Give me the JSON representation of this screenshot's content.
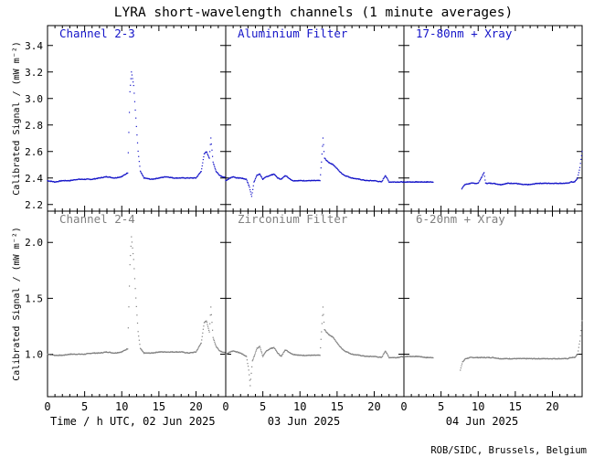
{
  "chart_data": {
    "type": "scatter",
    "title": "LYRA short-wavelength channels (1 minute averages)",
    "ylabel": "Calibrated Signal / (mW m⁻²)",
    "credit": "ROB/SIDC, Brussels, Belgium",
    "x_tick_labels": [
      "0",
      "5",
      "10",
      "15",
      "20"
    ],
    "x_ticks": [
      0,
      5,
      10,
      15,
      20
    ],
    "x_range": [
      0,
      24
    ],
    "day_labels": [
      "Time / h UTC, 02 Jun 2025",
      "03 Jun 2025",
      "04 Jun 2025"
    ],
    "rows": [
      {
        "ylim": [
          2.15,
          3.55
        ],
        "y_ticks": [
          2.2,
          2.4,
          2.6,
          2.8,
          3.0,
          3.2,
          3.4
        ],
        "y_tick_labels": [
          "2.2",
          "2.4",
          "2.6",
          "2.8",
          "3.0",
          "3.2",
          "3.4"
        ],
        "color": "#1414c8",
        "panels": [
          {
            "label": "Channel 2-3",
            "points": [
              [
                0,
                2.38
              ],
              [
                1,
                2.37
              ],
              [
                2,
                2.38
              ],
              [
                3,
                2.38
              ],
              [
                4,
                2.39
              ],
              [
                5,
                2.39
              ],
              [
                6,
                2.39
              ],
              [
                7,
                2.4
              ],
              [
                8,
                2.41
              ],
              [
                9,
                2.4
              ],
              [
                10,
                2.41
              ],
              [
                10.8,
                2.44
              ],
              [
                11.1,
                3.05
              ],
              [
                11.3,
                3.2
              ],
              [
                11.6,
                3.1
              ],
              [
                11.9,
                2.85
              ],
              [
                12.2,
                2.6
              ],
              [
                12.5,
                2.45
              ],
              [
                13,
                2.4
              ],
              [
                14,
                2.39
              ],
              [
                15,
                2.4
              ],
              [
                16,
                2.41
              ],
              [
                17,
                2.4
              ],
              [
                18,
                2.4
              ],
              [
                19,
                2.4
              ],
              [
                20,
                2.4
              ],
              [
                20.7,
                2.45
              ],
              [
                21.1,
                2.58
              ],
              [
                21.4,
                2.6
              ],
              [
                21.8,
                2.55
              ],
              [
                22.0,
                2.7
              ],
              [
                22.3,
                2.52
              ],
              [
                22.7,
                2.45
              ],
              [
                23.2,
                2.42
              ],
              [
                24,
                2.4
              ]
            ]
          },
          {
            "label": "Aluminium Filter",
            "points": [
              [
                0,
                2.38
              ],
              [
                0.6,
                2.4
              ],
              [
                1,
                2.41
              ],
              [
                1.5,
                2.4
              ],
              [
                2,
                2.4
              ],
              [
                2.8,
                2.39
              ],
              [
                3.2,
                2.33
              ],
              [
                3.5,
                2.26
              ],
              [
                3.8,
                2.37
              ],
              [
                4.2,
                2.42
              ],
              [
                4.6,
                2.43
              ],
              [
                5,
                2.39
              ],
              [
                5.5,
                2.41
              ],
              [
                6,
                2.42
              ],
              [
                6.5,
                2.43
              ],
              [
                7,
                2.4
              ],
              [
                7.5,
                2.39
              ],
              [
                8,
                2.42
              ],
              [
                9,
                2.38
              ],
              [
                10,
                2.38
              ],
              [
                11,
                2.38
              ],
              [
                12,
                2.38
              ],
              [
                12.7,
                2.38
              ],
              [
                12.9,
                2.52
              ],
              [
                13.1,
                2.7
              ],
              [
                13.3,
                2.55
              ],
              [
                13.8,
                2.52
              ],
              [
                14.5,
                2.5
              ],
              [
                15,
                2.47
              ],
              [
                15.5,
                2.44
              ],
              [
                16,
                2.42
              ],
              [
                17,
                2.4
              ],
              [
                18,
                2.39
              ],
              [
                19,
                2.38
              ],
              [
                20,
                2.38
              ],
              [
                21,
                2.37
              ],
              [
                21.5,
                2.42
              ],
              [
                22,
                2.37
              ],
              [
                23,
                2.37
              ],
              [
                24,
                2.37
              ]
            ]
          },
          {
            "label": "17-80nm + Xray",
            "points": [
              [
                0,
                2.37
              ],
              [
                1,
                2.37
              ],
              [
                2,
                2.37
              ],
              [
                3,
                2.37
              ],
              [
                4,
                2.37
              ],
              [
                null,
                null
              ],
              [
                7.8,
                2.32
              ],
              [
                8.2,
                2.35
              ],
              [
                9,
                2.36
              ],
              [
                10,
                2.36
              ],
              [
                10.8,
                2.44
              ],
              [
                11,
                2.36
              ],
              [
                12,
                2.36
              ],
              [
                13,
                2.35
              ],
              [
                14,
                2.36
              ],
              [
                15,
                2.36
              ],
              [
                16,
                2.35
              ],
              [
                17,
                2.35
              ],
              [
                18,
                2.36
              ],
              [
                19,
                2.36
              ],
              [
                20,
                2.36
              ],
              [
                21,
                2.36
              ],
              [
                22,
                2.36
              ],
              [
                22.5,
                2.37
              ],
              [
                23,
                2.37
              ],
              [
                23.4,
                2.4
              ],
              [
                23.7,
                2.48
              ],
              [
                24,
                2.6
              ]
            ]
          }
        ]
      },
      {
        "ylim": [
          0.62,
          2.28
        ],
        "y_ticks": [
          1.0,
          1.5,
          2.0
        ],
        "y_tick_labels": [
          "1.0",
          "1.5",
          "2.0"
        ],
        "color": "#808080",
        "panels": [
          {
            "label": "Channel 2-4",
            "points": [
              [
                0,
                1.0
              ],
              [
                1,
                0.99
              ],
              [
                2,
                0.99
              ],
              [
                3,
                1.0
              ],
              [
                4,
                1.0
              ],
              [
                5,
                1.0
              ],
              [
                6,
                1.01
              ],
              [
                7,
                1.01
              ],
              [
                8,
                1.02
              ],
              [
                9,
                1.01
              ],
              [
                10,
                1.02
              ],
              [
                10.8,
                1.05
              ],
              [
                11.1,
                1.8
              ],
              [
                11.3,
                2.05
              ],
              [
                11.6,
                1.85
              ],
              [
                11.9,
                1.5
              ],
              [
                12.2,
                1.2
              ],
              [
                12.5,
                1.05
              ],
              [
                13,
                1.01
              ],
              [
                14,
                1.01
              ],
              [
                15,
                1.02
              ],
              [
                16,
                1.02
              ],
              [
                17,
                1.02
              ],
              [
                18,
                1.02
              ],
              [
                19,
                1.01
              ],
              [
                20,
                1.02
              ],
              [
                20.7,
                1.1
              ],
              [
                21.1,
                1.28
              ],
              [
                21.4,
                1.3
              ],
              [
                21.8,
                1.2
              ],
              [
                22.0,
                1.42
              ],
              [
                22.3,
                1.15
              ],
              [
                22.7,
                1.07
              ],
              [
                23.2,
                1.03
              ],
              [
                24,
                1.01
              ]
            ]
          },
          {
            "label": "Zirconium Filter",
            "points": [
              [
                0,
                1.0
              ],
              [
                0.6,
                1.02
              ],
              [
                1,
                1.03
              ],
              [
                1.5,
                1.02
              ],
              [
                2,
                1.01
              ],
              [
                2.8,
                0.98
              ],
              [
                3.1,
                0.86
              ],
              [
                3.3,
                0.72
              ],
              [
                3.6,
                0.94
              ],
              [
                4.2,
                1.05
              ],
              [
                4.6,
                1.07
              ],
              [
                5,
                0.98
              ],
              [
                5.5,
                1.03
              ],
              [
                6,
                1.05
              ],
              [
                6.5,
                1.06
              ],
              [
                7,
                1.01
              ],
              [
                7.5,
                0.98
              ],
              [
                8,
                1.04
              ],
              [
                9,
                1.0
              ],
              [
                10,
                0.99
              ],
              [
                11,
                0.99
              ],
              [
                12,
                0.99
              ],
              [
                12.7,
                0.99
              ],
              [
                12.9,
                1.2
              ],
              [
                13.1,
                1.42
              ],
              [
                13.3,
                1.22
              ],
              [
                13.8,
                1.18
              ],
              [
                14.5,
                1.15
              ],
              [
                15,
                1.1
              ],
              [
                15.5,
                1.06
              ],
              [
                16,
                1.03
              ],
              [
                17,
                1.0
              ],
              [
                18,
                0.99
              ],
              [
                19,
                0.98
              ],
              [
                20,
                0.98
              ],
              [
                21,
                0.97
              ],
              [
                21.5,
                1.03
              ],
              [
                22,
                0.97
              ],
              [
                23,
                0.97
              ],
              [
                24,
                0.98
              ]
            ]
          },
          {
            "label": "6-20nm + Xray",
            "points": [
              [
                0,
                0.98
              ],
              [
                1,
                0.98
              ],
              [
                2,
                0.98
              ],
              [
                3,
                0.97
              ],
              [
                4,
                0.97
              ],
              [
                null,
                null
              ],
              [
                7.6,
                0.86
              ],
              [
                7.9,
                0.93
              ],
              [
                8.3,
                0.96
              ],
              [
                9,
                0.97
              ],
              [
                10,
                0.97
              ],
              [
                11,
                0.97
              ],
              [
                12,
                0.97
              ],
              [
                13,
                0.96
              ],
              [
                14,
                0.96
              ],
              [
                15,
                0.96
              ],
              [
                16,
                0.96
              ],
              [
                17,
                0.96
              ],
              [
                18,
                0.96
              ],
              [
                19,
                0.96
              ],
              [
                20,
                0.96
              ],
              [
                21,
                0.96
              ],
              [
                22,
                0.96
              ],
              [
                22.5,
                0.97
              ],
              [
                23,
                0.97
              ],
              [
                23.4,
                1.0
              ],
              [
                23.7,
                1.12
              ],
              [
                24,
                1.3
              ]
            ]
          }
        ]
      }
    ]
  }
}
